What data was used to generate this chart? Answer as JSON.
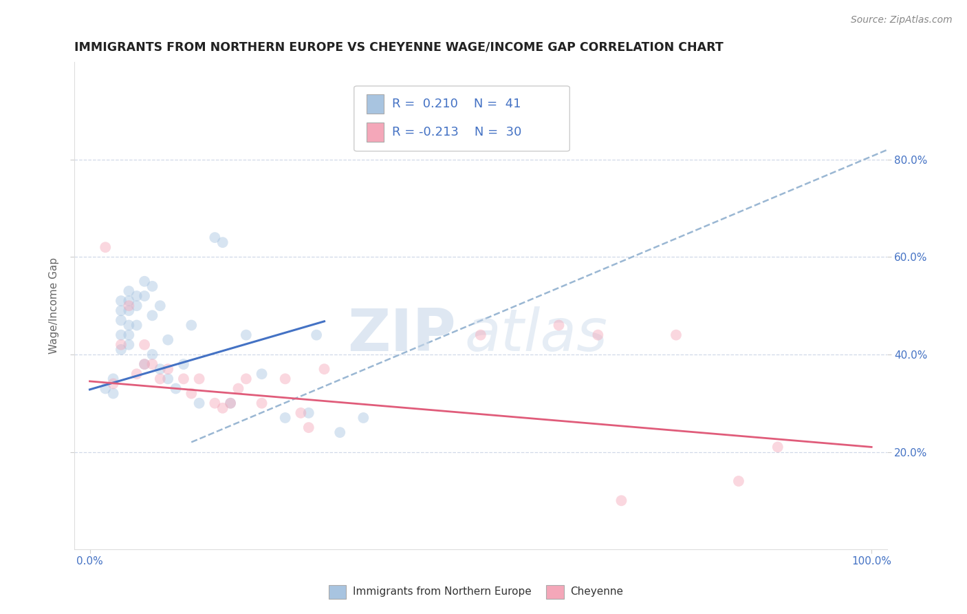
{
  "title": "IMMIGRANTS FROM NORTHERN EUROPE VS CHEYENNE WAGE/INCOME GAP CORRELATION CHART",
  "source": "Source: ZipAtlas.com",
  "ylabel": "Wage/Income Gap",
  "xlim": [
    -0.02,
    1.02
  ],
  "ylim": [
    0.0,
    1.0
  ],
  "ytick_positions": [
    0.2,
    0.4,
    0.6,
    0.8
  ],
  "ytick_labels": [
    "20.0%",
    "40.0%",
    "60.0%",
    "80.0%"
  ],
  "xtick_positions": [
    0.0,
    1.0
  ],
  "xtick_labels": [
    "0.0%",
    "100.0%"
  ],
  "blue_R": "0.210",
  "blue_N": "41",
  "pink_R": "-0.213",
  "pink_N": "30",
  "blue_color": "#a8c4e0",
  "pink_color": "#f4a7b9",
  "blue_line_color": "#4472c4",
  "pink_line_color": "#e05c7a",
  "dashed_line_color": "#9ab7d3",
  "legend_label_blue": "Immigrants from Northern Europe",
  "legend_label_pink": "Cheyenne",
  "watermark_zip": "ZIP",
  "watermark_atlas": "atlas",
  "blue_scatter_x": [
    0.02,
    0.03,
    0.03,
    0.04,
    0.04,
    0.04,
    0.04,
    0.04,
    0.05,
    0.05,
    0.05,
    0.05,
    0.05,
    0.05,
    0.06,
    0.06,
    0.06,
    0.07,
    0.07,
    0.07,
    0.08,
    0.08,
    0.08,
    0.09,
    0.09,
    0.1,
    0.1,
    0.11,
    0.12,
    0.13,
    0.14,
    0.16,
    0.17,
    0.18,
    0.2,
    0.22,
    0.25,
    0.28,
    0.29,
    0.32,
    0.35
  ],
  "blue_scatter_y": [
    0.33,
    0.35,
    0.32,
    0.51,
    0.49,
    0.47,
    0.44,
    0.41,
    0.53,
    0.51,
    0.49,
    0.46,
    0.44,
    0.42,
    0.52,
    0.5,
    0.46,
    0.55,
    0.52,
    0.38,
    0.54,
    0.48,
    0.4,
    0.5,
    0.37,
    0.43,
    0.35,
    0.33,
    0.38,
    0.46,
    0.3,
    0.64,
    0.63,
    0.3,
    0.44,
    0.36,
    0.27,
    0.28,
    0.44,
    0.24,
    0.27
  ],
  "pink_scatter_x": [
    0.02,
    0.03,
    0.04,
    0.05,
    0.06,
    0.07,
    0.07,
    0.08,
    0.09,
    0.1,
    0.12,
    0.13,
    0.14,
    0.16,
    0.17,
    0.18,
    0.19,
    0.2,
    0.22,
    0.25,
    0.27,
    0.28,
    0.3,
    0.5,
    0.6,
    0.65,
    0.68,
    0.75,
    0.83,
    0.88
  ],
  "pink_scatter_y": [
    0.62,
    0.34,
    0.42,
    0.5,
    0.36,
    0.42,
    0.38,
    0.38,
    0.35,
    0.37,
    0.35,
    0.32,
    0.35,
    0.3,
    0.29,
    0.3,
    0.33,
    0.35,
    0.3,
    0.35,
    0.28,
    0.25,
    0.37,
    0.44,
    0.46,
    0.44,
    0.1,
    0.44,
    0.14,
    0.21
  ],
  "blue_trend_x": [
    0.0,
    0.3
  ],
  "blue_trend_y": [
    0.328,
    0.468
  ],
  "pink_trend_x": [
    0.0,
    1.0
  ],
  "pink_trend_y": [
    0.345,
    0.21
  ],
  "dashed_trend_x": [
    0.13,
    1.02
  ],
  "dashed_trend_y": [
    0.22,
    0.82
  ],
  "figsize": [
    14.06,
    8.92
  ],
  "dpi": 100,
  "background_color": "#ffffff",
  "title_color": "#222222",
  "axis_label_color": "#666666",
  "tick_label_color": "#4472c4",
  "grid_color": "#d0d8e8",
  "marker_size": 130,
  "marker_alpha": 0.45,
  "legend_fontsize": 13,
  "title_fontsize": 12.5,
  "ylabel_fontsize": 11,
  "source_fontsize": 10
}
